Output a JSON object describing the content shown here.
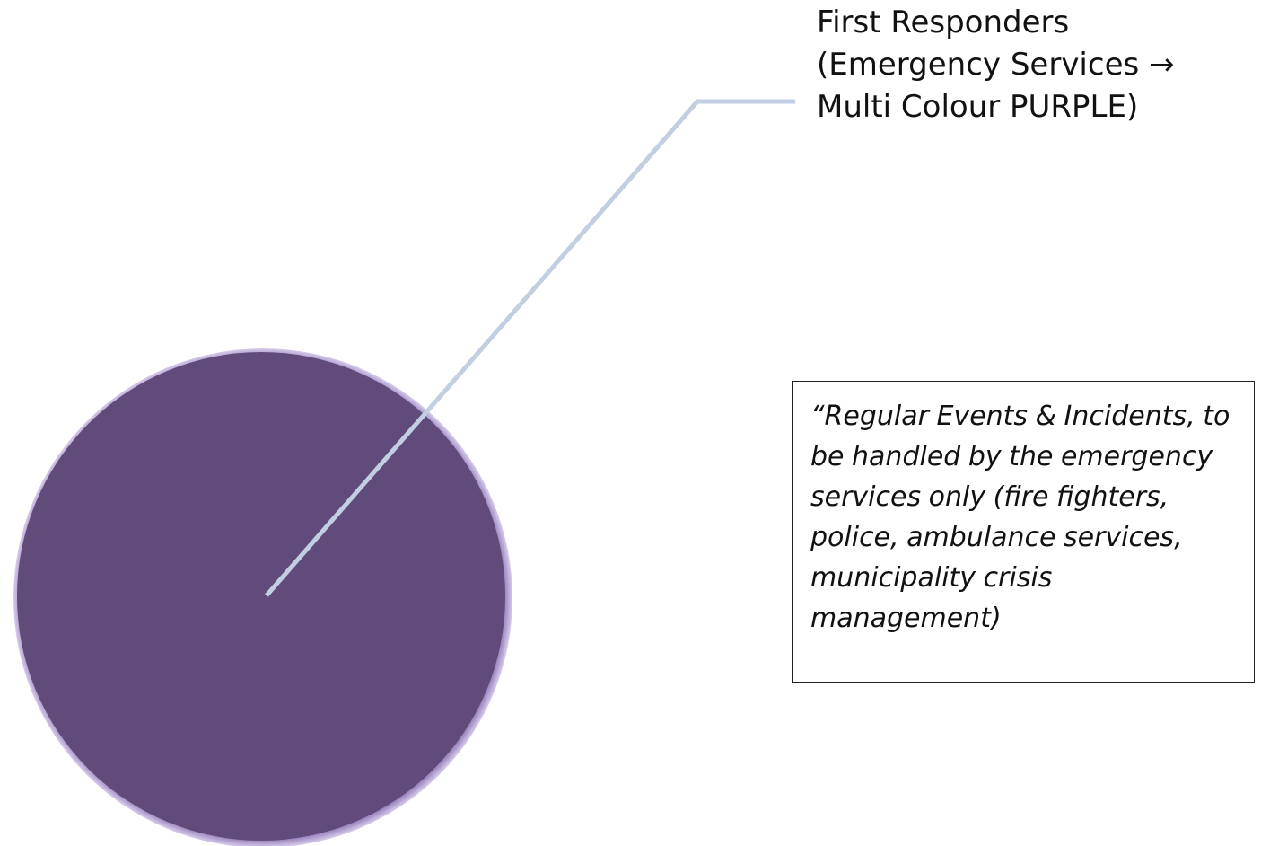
{
  "callout": {
    "lines": [
      "First Responders",
      "(Emergency Services →",
      "Multi Colour PURPLE)"
    ]
  },
  "note": {
    "text": "“Regular Events & Incidents, to be handled by the emergency services only (fire fighters, police, ambulance services, municipality crisis management)"
  },
  "colors": {
    "circle_fill": "#614b7a",
    "circle_rim": "#b9a6d8",
    "leader_line": "#c2cee1"
  }
}
